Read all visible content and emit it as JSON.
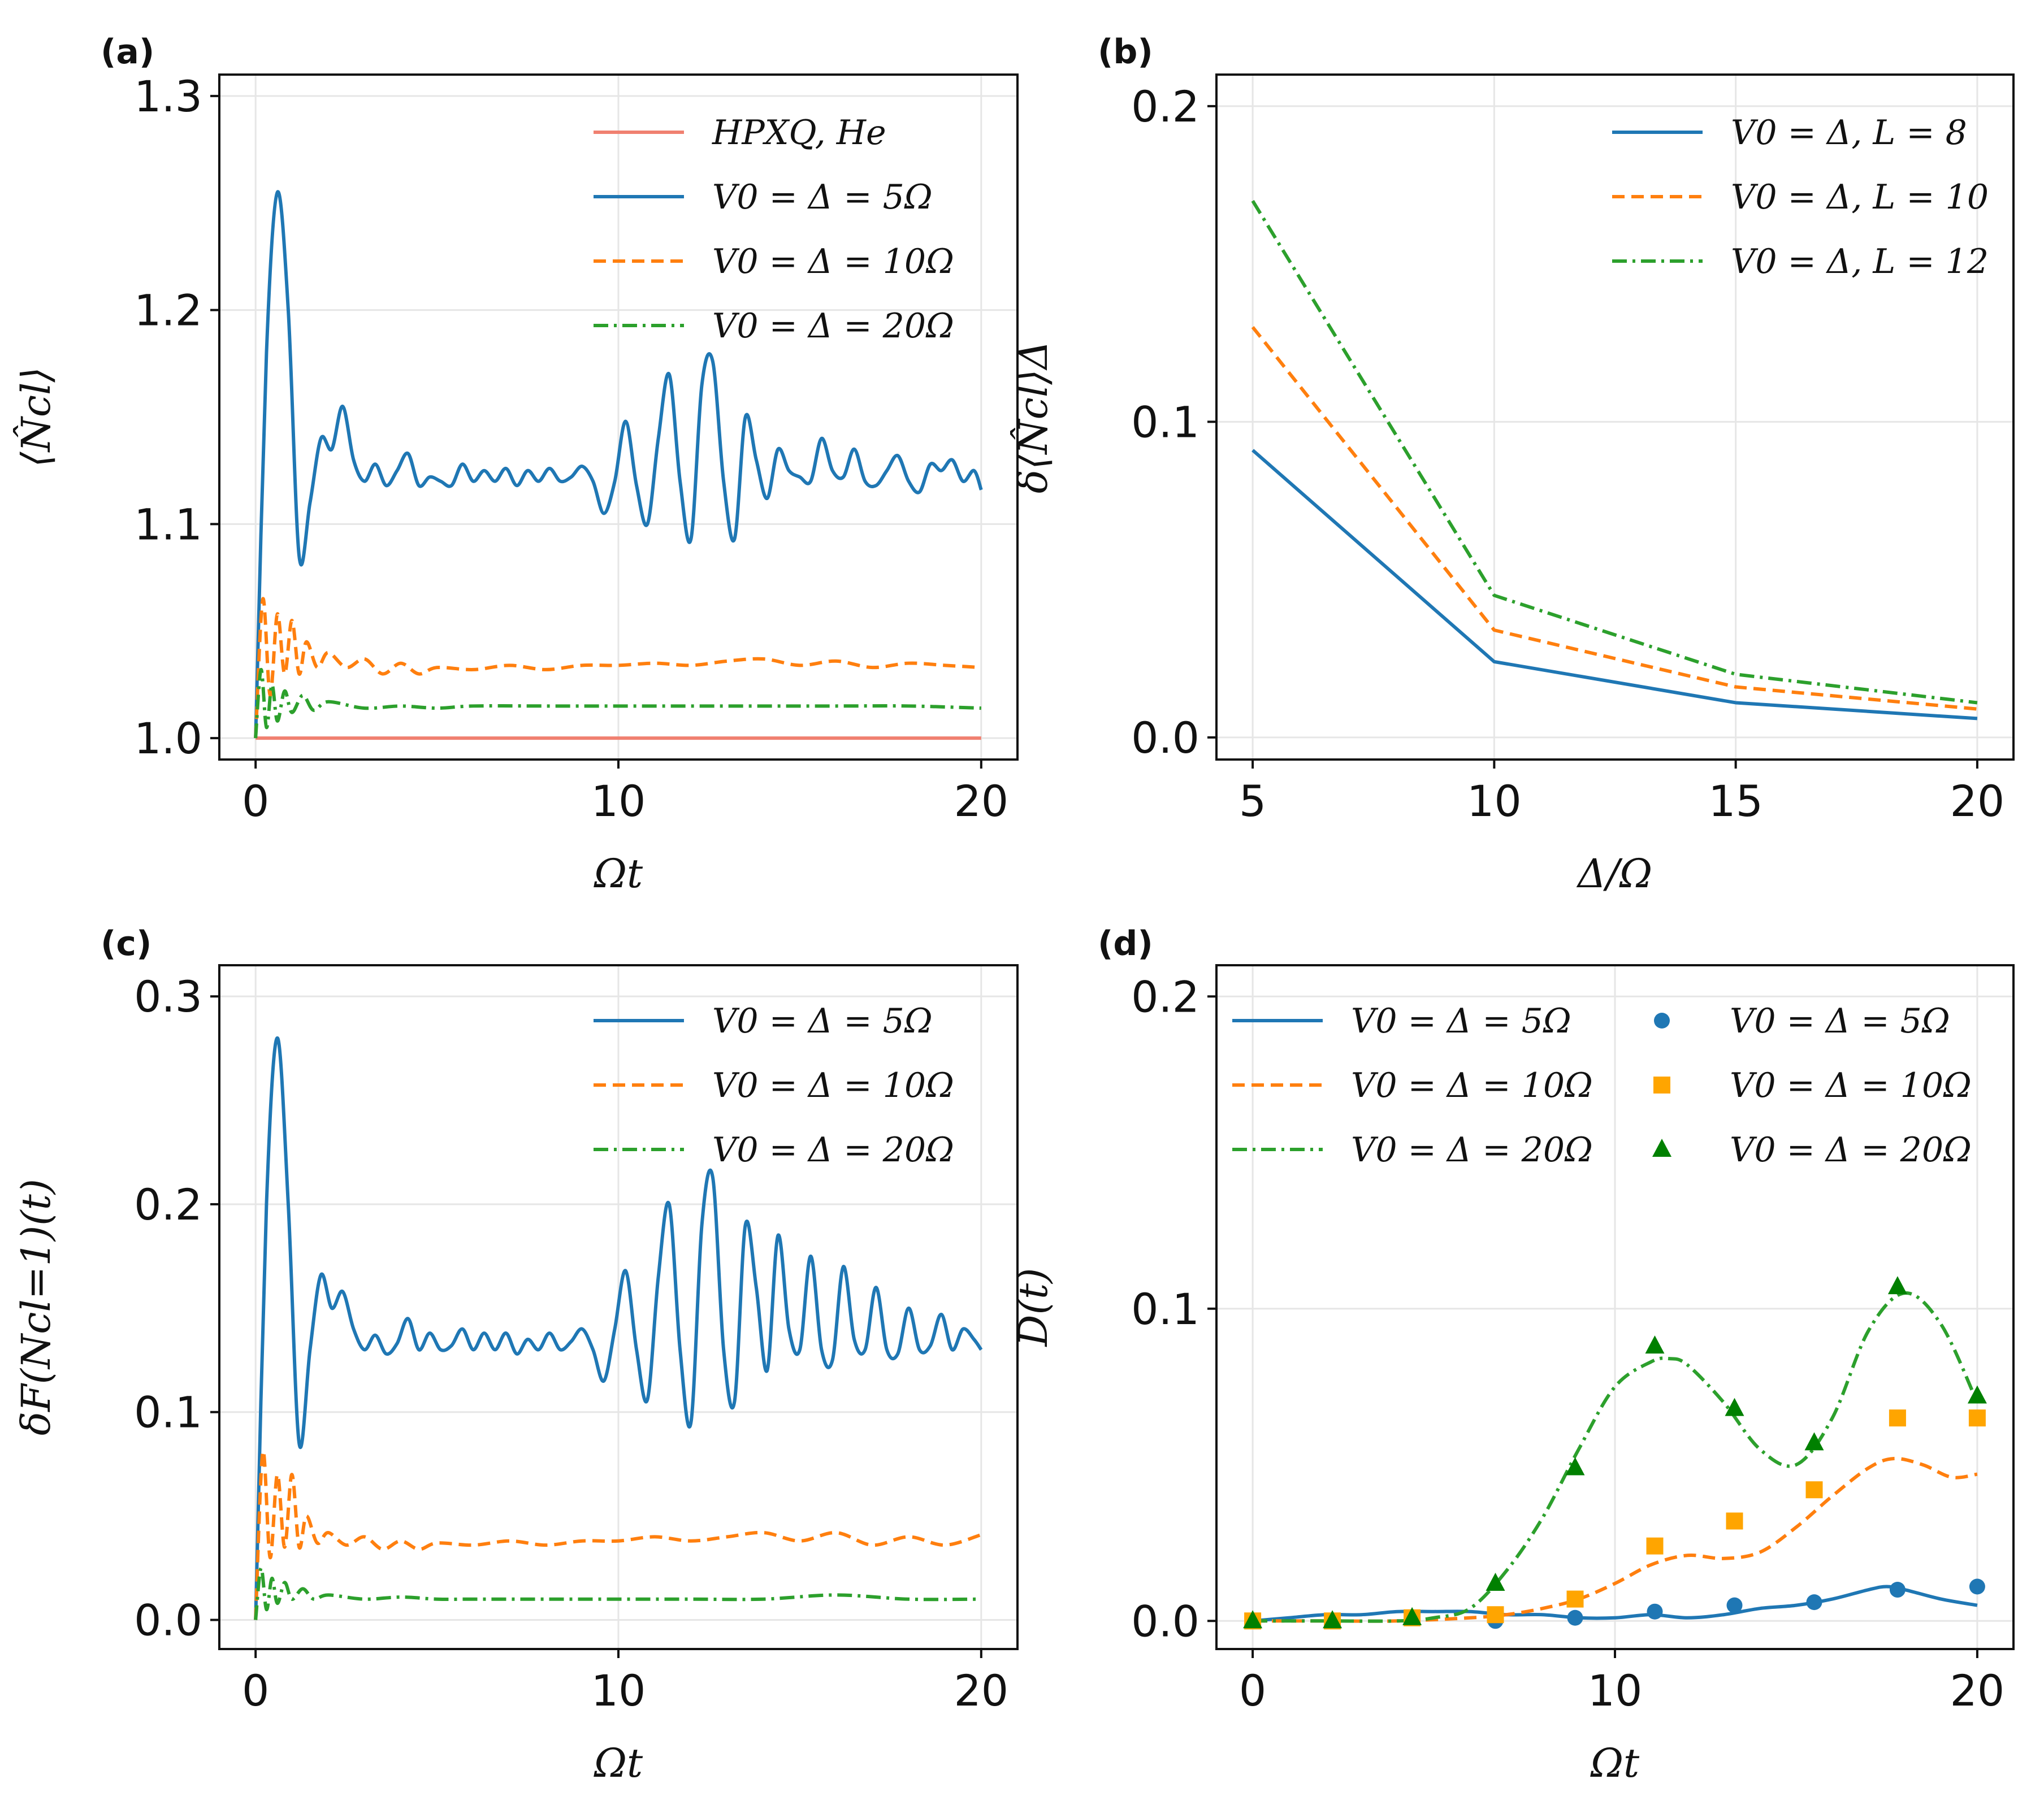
{
  "colors": {
    "blue": "#1f77b4",
    "orange": "#ff7f0e",
    "green": "#2ca02c",
    "salmon": "#f08070",
    "orange_marker": "#ffa500",
    "green_marker": "#008000"
  },
  "chart_data": [
    {
      "id": "a",
      "panel_label": "(a)",
      "type": "line",
      "xlabel": "Ωt",
      "ylabel": "⟨N̂cl⟩",
      "xlim": [
        -1,
        21
      ],
      "ylim": [
        0.99,
        1.31
      ],
      "xticks": [
        "0",
        "10",
        "20"
      ],
      "yticks": [
        "1.0",
        "1.1",
        "1.2",
        "1.3"
      ],
      "series": [
        {
          "name": "HPXQ, He",
          "color": "#f08070",
          "style": "solid",
          "x": [
            0,
            20
          ],
          "y": [
            1.0,
            1.0
          ]
        },
        {
          "name": "V0 = Δ = 5Ω",
          "color": "#1f77b4",
          "style": "solid",
          "x": [
            0,
            0.3,
            0.6,
            0.9,
            1.2,
            1.5,
            1.8,
            2.1,
            2.4,
            2.7,
            3.0,
            3.3,
            3.6,
            3.9,
            4.2,
            4.5,
            4.8,
            5.1,
            5.4,
            5.7,
            6.0,
            6.3,
            6.6,
            6.9,
            7.2,
            7.5,
            7.8,
            8.1,
            8.4,
            8.7,
            9.0,
            9.3,
            9.6,
            9.9,
            10.2,
            10.5,
            10.8,
            11.1,
            11.4,
            11.7,
            12.0,
            12.3,
            12.6,
            12.9,
            13.2,
            13.5,
            13.8,
            14.1,
            14.4,
            14.7,
            15.0,
            15.3,
            15.6,
            15.9,
            16.2,
            16.5,
            16.8,
            17.1,
            17.4,
            17.7,
            18.0,
            18.3,
            18.6,
            18.9,
            19.2,
            19.5,
            19.8,
            20.0
          ],
          "y": [
            1.0,
            1.18,
            1.255,
            1.2,
            1.085,
            1.11,
            1.14,
            1.135,
            1.155,
            1.13,
            1.12,
            1.128,
            1.118,
            1.125,
            1.133,
            1.118,
            1.122,
            1.12,
            1.118,
            1.128,
            1.12,
            1.125,
            1.12,
            1.126,
            1.118,
            1.125,
            1.12,
            1.126,
            1.12,
            1.122,
            1.127,
            1.12,
            1.105,
            1.12,
            1.148,
            1.118,
            1.1,
            1.14,
            1.17,
            1.12,
            1.093,
            1.165,
            1.176,
            1.12,
            1.093,
            1.15,
            1.13,
            1.112,
            1.135,
            1.125,
            1.122,
            1.12,
            1.14,
            1.125,
            1.122,
            1.135,
            1.12,
            1.118,
            1.125,
            1.132,
            1.12,
            1.115,
            1.128,
            1.125,
            1.13,
            1.12,
            1.125,
            1.116
          ]
        },
        {
          "name": "V0 = Δ = 10Ω",
          "color": "#ff7f0e",
          "style": "dashed",
          "x": [
            0,
            0.2,
            0.4,
            0.6,
            0.8,
            1.0,
            1.2,
            1.4,
            1.7,
            2.0,
            2.5,
            3.0,
            3.5,
            4.0,
            4.5,
            5.0,
            6.0,
            7.0,
            8.0,
            9.0,
            10.0,
            11.0,
            12.0,
            13.0,
            14.0,
            15.0,
            16.0,
            17.0,
            18.0,
            19.0,
            20.0
          ],
          "y": [
            1.0,
            1.065,
            1.02,
            1.058,
            1.03,
            1.055,
            1.03,
            1.045,
            1.033,
            1.04,
            1.033,
            1.037,
            1.03,
            1.035,
            1.03,
            1.033,
            1.032,
            1.034,
            1.032,
            1.034,
            1.034,
            1.035,
            1.034,
            1.036,
            1.037,
            1.034,
            1.036,
            1.033,
            1.035,
            1.034,
            1.033
          ]
        },
        {
          "name": "V0 = Δ = 20Ω",
          "color": "#2ca02c",
          "style": "dashdot",
          "x": [
            0,
            0.15,
            0.3,
            0.45,
            0.6,
            0.8,
            1.0,
            1.3,
            1.6,
            2.0,
            3.0,
            4.0,
            5.0,
            6.0,
            8.0,
            10.0,
            12.0,
            14.0,
            16.0,
            18.0,
            20.0
          ],
          "y": [
            1.0,
            1.032,
            1.005,
            1.025,
            1.008,
            1.022,
            1.012,
            1.02,
            1.013,
            1.017,
            1.014,
            1.015,
            1.014,
            1.015,
            1.015,
            1.015,
            1.015,
            1.015,
            1.015,
            1.015,
            1.014
          ]
        }
      ]
    },
    {
      "id": "b",
      "panel_label": "(b)",
      "type": "line",
      "xlabel": "Δ/Ω",
      "ylabel": "δ⟨N̂cl⟩Δ",
      "xlim": [
        4.25,
        20.75
      ],
      "ylim": [
        -0.007,
        0.21
      ],
      "xticks": [
        "5",
        "10",
        "15",
        "20"
      ],
      "yticks": [
        "0.0",
        "0.1",
        "0.2"
      ],
      "series": [
        {
          "name": "V0 = Δ, L = 8",
          "color": "#1f77b4",
          "style": "solid",
          "x": [
            5,
            10,
            15,
            20
          ],
          "y": [
            0.091,
            0.024,
            0.011,
            0.006
          ]
        },
        {
          "name": "V0 = Δ, L = 10",
          "color": "#ff7f0e",
          "style": "dashed",
          "x": [
            5,
            10,
            15,
            20
          ],
          "y": [
            0.13,
            0.034,
            0.016,
            0.009
          ]
        },
        {
          "name": "V0 = Δ, L = 12",
          "color": "#2ca02c",
          "style": "dashdot",
          "x": [
            5,
            10,
            15,
            20
          ],
          "y": [
            0.17,
            0.045,
            0.02,
            0.011
          ]
        }
      ]
    },
    {
      "id": "c",
      "panel_label": "(c)",
      "type": "line",
      "xlabel": "Ωt",
      "ylabel": "δF(Ncl=1)(t)",
      "xlim": [
        -1,
        21
      ],
      "ylim": [
        -0.014,
        0.315
      ],
      "xticks": [
        "0",
        "10",
        "20"
      ],
      "yticks": [
        "0.0",
        "0.1",
        "0.2",
        "0.3"
      ],
      "series": [
        {
          "name": "V0 = Δ = 5Ω",
          "color": "#1f77b4",
          "style": "solid",
          "x": [
            0,
            0.3,
            0.6,
            0.9,
            1.2,
            1.5,
            1.8,
            2.1,
            2.4,
            2.7,
            3.0,
            3.3,
            3.6,
            3.9,
            4.2,
            4.5,
            4.8,
            5.1,
            5.4,
            5.7,
            6.0,
            6.3,
            6.6,
            6.9,
            7.2,
            7.5,
            7.8,
            8.1,
            8.4,
            8.7,
            9.0,
            9.3,
            9.6,
            9.9,
            10.2,
            10.5,
            10.8,
            11.1,
            11.4,
            11.7,
            12.0,
            12.3,
            12.6,
            12.9,
            13.2,
            13.5,
            13.8,
            14.1,
            14.4,
            14.7,
            15.0,
            15.3,
            15.6,
            15.9,
            16.2,
            16.5,
            16.8,
            17.1,
            17.4,
            17.7,
            18.0,
            18.3,
            18.6,
            18.9,
            19.2,
            19.5,
            19.8,
            20.0
          ],
          "y": [
            0.0,
            0.2,
            0.28,
            0.2,
            0.085,
            0.13,
            0.166,
            0.15,
            0.158,
            0.14,
            0.13,
            0.137,
            0.128,
            0.133,
            0.145,
            0.13,
            0.138,
            0.13,
            0.132,
            0.14,
            0.13,
            0.138,
            0.13,
            0.138,
            0.128,
            0.135,
            0.13,
            0.138,
            0.13,
            0.134,
            0.14,
            0.13,
            0.115,
            0.14,
            0.168,
            0.13,
            0.106,
            0.165,
            0.2,
            0.13,
            0.095,
            0.19,
            0.213,
            0.13,
            0.105,
            0.19,
            0.16,
            0.12,
            0.185,
            0.14,
            0.13,
            0.175,
            0.13,
            0.125,
            0.17,
            0.135,
            0.13,
            0.16,
            0.13,
            0.128,
            0.15,
            0.13,
            0.132,
            0.147,
            0.13,
            0.14,
            0.135,
            0.13
          ]
        },
        {
          "name": "V0 = Δ = 10Ω",
          "color": "#ff7f0e",
          "style": "dashed",
          "x": [
            0,
            0.2,
            0.4,
            0.6,
            0.8,
            1.0,
            1.2,
            1.4,
            1.7,
            2.0,
            2.5,
            3.0,
            3.5,
            4.0,
            4.5,
            5.0,
            6.0,
            7.0,
            8.0,
            9.0,
            10.0,
            11.0,
            12.0,
            13.0,
            14.0,
            15.0,
            16.0,
            17.0,
            18.0,
            19.0,
            20.0
          ],
          "y": [
            0.0,
            0.081,
            0.03,
            0.07,
            0.035,
            0.07,
            0.035,
            0.05,
            0.037,
            0.042,
            0.036,
            0.04,
            0.034,
            0.038,
            0.034,
            0.037,
            0.036,
            0.038,
            0.036,
            0.038,
            0.038,
            0.04,
            0.038,
            0.04,
            0.042,
            0.038,
            0.042,
            0.036,
            0.04,
            0.036,
            0.041
          ]
        },
        {
          "name": "V0 = Δ = 20Ω",
          "color": "#2ca02c",
          "style": "dashdot",
          "x": [
            0,
            0.15,
            0.3,
            0.45,
            0.6,
            0.8,
            1.0,
            1.3,
            1.6,
            2.0,
            3.0,
            4.0,
            5.0,
            6.0,
            8.0,
            10.0,
            12.0,
            14.0,
            16.0,
            18.0,
            20.0
          ],
          "y": [
            0.0,
            0.025,
            0.005,
            0.02,
            0.008,
            0.018,
            0.01,
            0.015,
            0.01,
            0.012,
            0.01,
            0.011,
            0.01,
            0.01,
            0.01,
            0.01,
            0.01,
            0.01,
            0.012,
            0.01,
            0.01
          ]
        }
      ]
    },
    {
      "id": "d",
      "panel_label": "(d)",
      "type": "line",
      "xlabel": "Ωt",
      "ylabel": "D(t)",
      "xlim": [
        -1,
        21
      ],
      "ylim": [
        -0.009,
        0.21
      ],
      "xticks": [
        "0",
        "10",
        "20"
      ],
      "yticks": [
        "0.0",
        "0.1",
        "0.2"
      ],
      "series": [
        {
          "name": "V0 = Δ = 5Ω",
          "color": "#1f77b4",
          "style": "solid",
          "x": [
            0,
            1,
            2,
            3,
            4,
            5,
            6,
            7,
            8,
            9,
            10,
            11,
            12,
            13,
            14,
            15,
            16,
            17,
            17.5,
            18,
            19,
            20
          ],
          "y": [
            0.0,
            0.001,
            0.002,
            0.002,
            0.003,
            0.003,
            0.003,
            0.002,
            0.002,
            0.001,
            0.001,
            0.002,
            0.001,
            0.002,
            0.004,
            0.005,
            0.007,
            0.01,
            0.011,
            0.01,
            0.007,
            0.005
          ]
        },
        {
          "name": "V0 = Δ = 10Ω",
          "color": "#ff7f0e",
          "style": "dashed",
          "x": [
            0,
            2,
            4,
            6,
            7,
            8,
            9,
            10,
            11,
            12,
            13,
            14,
            15,
            16,
            17,
            17.7,
            18.5,
            19.3,
            20
          ],
          "y": [
            0.0,
            0.0,
            0.0,
            0.001,
            0.002,
            0.004,
            0.007,
            0.012,
            0.018,
            0.021,
            0.02,
            0.022,
            0.03,
            0.04,
            0.049,
            0.052,
            0.05,
            0.046,
            0.047
          ]
        },
        {
          "name": "V0 = Δ = 20Ω",
          "color": "#2ca02c",
          "style": "dashdot",
          "x": [
            0,
            2,
            4,
            5,
            6,
            7,
            8,
            9,
            10,
            11,
            11.5,
            12,
            13,
            14,
            15,
            16,
            17,
            18,
            19,
            20
          ],
          "y": [
            0.0,
            0.0,
            0.0,
            0.001,
            0.004,
            0.016,
            0.033,
            0.055,
            0.075,
            0.083,
            0.084,
            0.082,
            0.07,
            0.055,
            0.05,
            0.065,
            0.093,
            0.105,
            0.095,
            0.07
          ]
        },
        {
          "name": "V0 = Δ = 5Ω",
          "color": "#1f77b4",
          "style": "marker",
          "marker": "circle",
          "x": [
            0,
            2.2,
            4.4,
            6.7,
            8.9,
            11.1,
            13.3,
            15.5,
            17.8,
            20.0
          ],
          "y": [
            0.0,
            0.0,
            0.001,
            0.0,
            0.001,
            0.003,
            0.005,
            0.006,
            0.01,
            0.011
          ]
        },
        {
          "name": "V0 = Δ = 10Ω",
          "color": "#ffa500",
          "style": "marker",
          "marker": "square",
          "x": [
            0,
            2.2,
            4.4,
            6.7,
            8.9,
            11.1,
            13.3,
            15.5,
            17.8,
            20.0
          ],
          "y": [
            0.0,
            0.0,
            0.001,
            0.002,
            0.007,
            0.024,
            0.032,
            0.042,
            0.065,
            0.065
          ]
        },
        {
          "name": "V0 = Δ = 20Ω",
          "color": "#008000",
          "style": "marker",
          "marker": "triangle",
          "x": [
            0,
            2.2,
            4.4,
            6.7,
            8.9,
            11.1,
            13.3,
            15.5,
            17.8,
            20.0
          ],
          "y": [
            0.0,
            0.0,
            0.001,
            0.012,
            0.049,
            0.088,
            0.068,
            0.057,
            0.107,
            0.072
          ]
        }
      ]
    }
  ]
}
